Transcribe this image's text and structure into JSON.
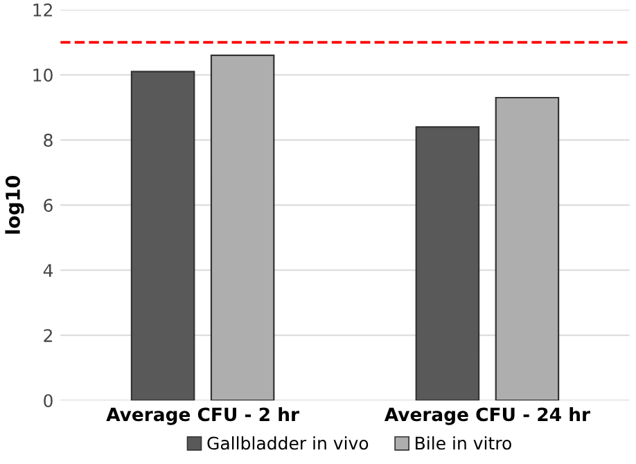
{
  "chart_data": {
    "type": "bar",
    "ylabel": "log10",
    "categories": [
      "Average CFU - 2 hr",
      "Average CFU - 24 hr"
    ],
    "series": [
      {
        "name": "Gallbladder in vivo",
        "color": "#595959",
        "values": [
          10.1,
          8.4
        ]
      },
      {
        "name": "Bile in vitro",
        "color": "#aeaeae",
        "values": [
          10.6,
          9.3
        ]
      }
    ],
    "ylim": [
      0,
      12
    ],
    "yticks": [
      0,
      2,
      4,
      6,
      8,
      10,
      12
    ],
    "grid": "y",
    "legend": "bottom",
    "ref_lines": [
      {
        "axis": "y",
        "value": 11,
        "label": null,
        "color": "#ff0000",
        "line_style": "dashed"
      }
    ]
  }
}
